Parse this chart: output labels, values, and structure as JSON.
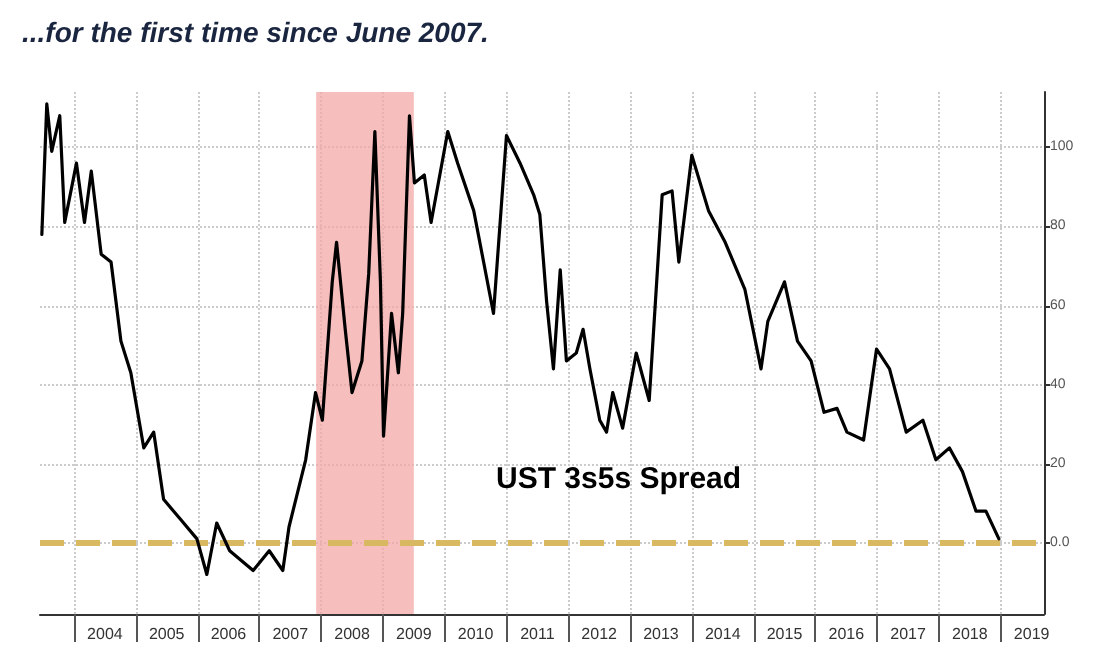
{
  "chart_data": {
    "type": "line",
    "title": "...for the first time since June 2007.",
    "annotations": [
      "UST 3s5s Spread"
    ],
    "x": [
      2003.48,
      2003.56,
      2003.64,
      2003.77,
      2003.85,
      2004.04,
      2004.17,
      2004.28,
      2004.44,
      2004.6,
      2004.76,
      2004.92,
      2005.13,
      2005.29,
      2005.45,
      2005.72,
      2005.99,
      2006.15,
      2006.31,
      2006.52,
      2006.9,
      2007.16,
      2007.38,
      2007.48,
      2007.75,
      2007.91,
      2008.02,
      2008.18,
      2008.25,
      2008.39,
      2008.5,
      2008.66,
      2008.77,
      2008.87,
      2008.96,
      2009.01,
      2009.14,
      2009.25,
      2009.32,
      2009.43,
      2009.51,
      2009.67,
      2009.78,
      2010.05,
      2010.21,
      2010.47,
      2010.63,
      2010.79,
      2011.0,
      2011.22,
      2011.44,
      2011.54,
      2011.65,
      2011.76,
      2011.87,
      2011.97,
      2012.13,
      2012.24,
      2012.35,
      2012.51,
      2012.62,
      2012.72,
      2012.88,
      2013.1,
      2013.31,
      2013.52,
      2013.68,
      2013.79,
      2014.0,
      2014.27,
      2014.54,
      2014.86,
      2015.12,
      2015.23,
      2015.5,
      2015.71,
      2015.93,
      2016.14,
      2016.35,
      2016.51,
      2016.78,
      2016.99,
      2017.2,
      2017.47,
      2017.74,
      2017.95,
      2018.17,
      2018.38,
      2018.6,
      2018.76,
      2018.97
    ],
    "series": [
      {
        "color": "#000000",
        "values": [
          78,
          111,
          99,
          108,
          81,
          96,
          81,
          94,
          73,
          71,
          51,
          43,
          24,
          28,
          11,
          6,
          1,
          -8,
          5,
          -2,
          -7,
          -2,
          -7,
          4,
          21,
          38,
          31,
          66,
          76,
          54,
          38,
          46,
          68,
          104,
          66,
          27,
          58,
          43,
          58,
          108,
          91,
          93,
          81,
          104,
          96,
          84,
          71,
          58,
          103,
          96,
          88,
          83,
          61,
          44,
          69,
          46,
          48,
          54,
          44,
          31,
          28,
          38,
          29,
          48,
          36,
          88,
          89,
          71,
          98,
          84,
          76,
          64,
          44,
          56,
          66,
          51,
          46,
          33,
          34,
          28,
          26,
          49,
          44,
          28,
          31,
          21,
          24,
          18,
          8,
          8,
          1
        ]
      }
    ],
    "xlim": [
      2003.45,
      2019.7
    ],
    "xticks": [
      {
        "value": 2004,
        "label": null
      },
      {
        "value": 2004.5,
        "label": "2004"
      },
      {
        "value": 2005,
        "label": null
      },
      {
        "value": 2005.5,
        "label": "2005"
      },
      {
        "value": 2006,
        "label": null
      },
      {
        "value": 2006.5,
        "label": "2006"
      },
      {
        "value": 2007,
        "label": null
      },
      {
        "value": 2007.5,
        "label": "2007"
      },
      {
        "value": 2008,
        "label": null
      },
      {
        "value": 2008.5,
        "label": "2008"
      },
      {
        "value": 2009,
        "label": null
      },
      {
        "value": 2009.5,
        "label": "2009"
      },
      {
        "value": 2010,
        "label": null
      },
      {
        "value": 2010.5,
        "label": "2010"
      },
      {
        "value": 2011,
        "label": null
      },
      {
        "value": 2011.5,
        "label": "2011"
      },
      {
        "value": 2012,
        "label": null
      },
      {
        "value": 2012.5,
        "label": "2012"
      },
      {
        "value": 2013,
        "label": null
      },
      {
        "value": 2013.5,
        "label": "2013"
      },
      {
        "value": 2014,
        "label": null
      },
      {
        "value": 2014.5,
        "label": "2014"
      },
      {
        "value": 2015,
        "label": null
      },
      {
        "value": 2015.5,
        "label": "2015"
      },
      {
        "value": 2016,
        "label": null
      },
      {
        "value": 2016.5,
        "label": "2016"
      },
      {
        "value": 2017,
        "label": null
      },
      {
        "value": 2017.5,
        "label": "2017"
      },
      {
        "value": 2018,
        "label": null
      },
      {
        "value": 2018.5,
        "label": "2018"
      },
      {
        "value": 2019,
        "label": null
      },
      {
        "value": 2019.5,
        "label": "2019"
      }
    ],
    "ylim": [
      -18,
      114
    ],
    "yticks": [
      {
        "value": 0,
        "label": "0.0"
      },
      20,
      40,
      60,
      80,
      100
    ],
    "grid": true,
    "marker": "none",
    "line_style": "solid",
    "bands": [
      {
        "axis": "x",
        "from": 2007.92,
        "to": 2009.5,
        "color": "#f4a8a8"
      }
    ],
    "ref_lines": [
      {
        "axis": "y",
        "value": 0,
        "color": "#d8b860",
        "line_style": "dashed"
      }
    ]
  }
}
